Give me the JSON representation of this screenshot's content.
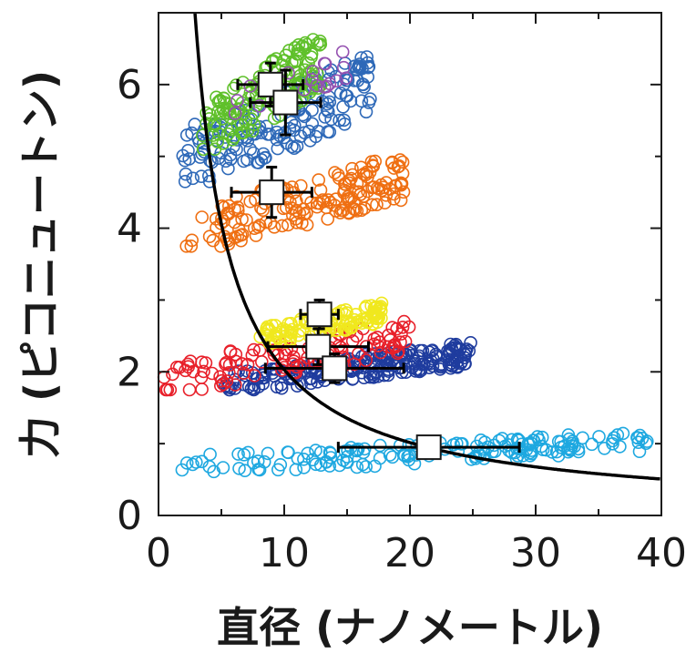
{
  "chart_data": {
    "type": "scatter",
    "title": "",
    "xlabel": "直径 (ナノメートル)",
    "ylabel": "力 (ピコニュートン)",
    "xlim": [
      0,
      40
    ],
    "ylim": [
      0,
      7
    ],
    "xticks": [
      0,
      10,
      20,
      30,
      40
    ],
    "yticks": [
      0,
      2,
      4,
      6
    ],
    "grid": false,
    "series": [
      {
        "color": "#1ea8e0",
        "x_range": [
          1,
          39
        ],
        "y_range": [
          0.6,
          1.25
        ],
        "count": 170
      },
      {
        "color": "#1f3c9e",
        "x_range": [
          5,
          25
        ],
        "y_range": [
          1.75,
          2.5
        ],
        "count": 220
      },
      {
        "color": "#e8202a",
        "x_range": [
          0,
          20
        ],
        "y_range": [
          1.75,
          2.85
        ],
        "count": 120
      },
      {
        "color": "#f0e81e",
        "x_range": [
          8,
          18
        ],
        "y_range": [
          2.4,
          3.05
        ],
        "count": 120
      },
      {
        "color": "#ef6f12",
        "x_range": [
          2,
          19.5
        ],
        "y_range": [
          3.75,
          5.2
        ],
        "count": 170
      },
      {
        "color": "#2e69b8",
        "x_range": [
          1.5,
          17
        ],
        "y_range": [
          4.65,
          6.7
        ],
        "count": 170
      },
      {
        "color": "#5fc02a",
        "x_range": [
          3.5,
          13
        ],
        "y_range": [
          5.1,
          6.95
        ],
        "count": 150
      },
      {
        "color": "#9450b0",
        "x_range": [
          5,
          15
        ],
        "y_range": [
          5.6,
          6.6
        ],
        "count": 20
      }
    ],
    "mean_points": [
      {
        "x": 8.9,
        "y": 6.0,
        "x_err": 2.6,
        "y_err": 0.3
      },
      {
        "x": 10.1,
        "y": 5.75,
        "x_err": 2.8,
        "y_err": 0.45
      },
      {
        "x": 9.0,
        "y": 4.5,
        "x_err": 3.2,
        "y_err": 0.35
      },
      {
        "x": 12.8,
        "y": 2.8,
        "x_err": 1.5,
        "y_err": 0.2
      },
      {
        "x": 12.7,
        "y": 2.35,
        "x_err": 4.0,
        "y_err": 0.25
      },
      {
        "x": 14.0,
        "y": 2.05,
        "x_err": 5.5,
        "y_err": 0.2
      },
      {
        "x": 21.5,
        "y": 0.95,
        "x_err": 7.2,
        "y_err": 0.08
      }
    ],
    "fit_curve": {
      "type": "inverse",
      "numerator": 20.3,
      "color": "#000000"
    }
  }
}
